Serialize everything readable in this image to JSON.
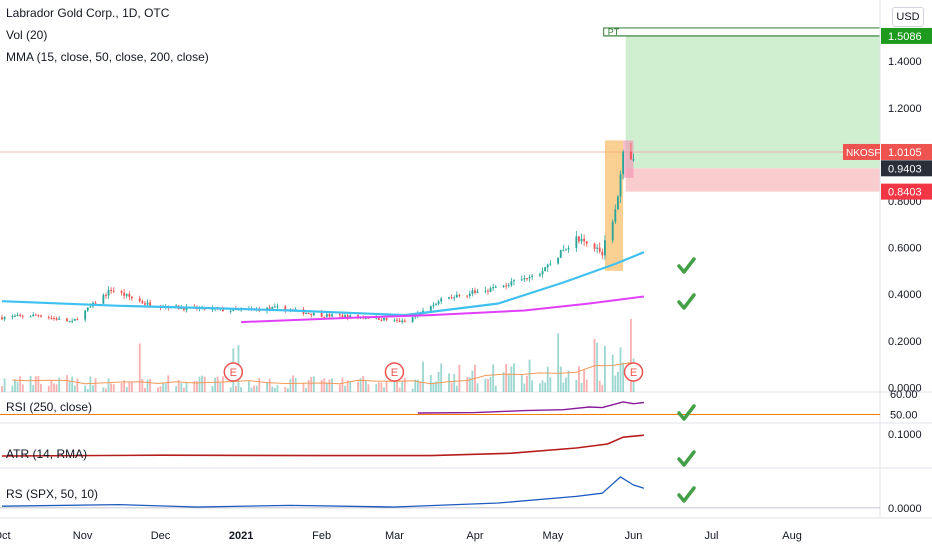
{
  "header": {
    "title": "Labrador Gold Corp., 1D, OTC",
    "vol_label": "Vol (20)",
    "mma_label": "MMA (15, close, 50, close, 200, close)"
  },
  "currency": "USD",
  "price_pane": {
    "y_ticks": [
      "0.0000",
      "0.2000",
      "0.4000",
      "0.6000",
      "0.8000",
      "1.2000",
      "1.4000"
    ],
    "y_tick_values": [
      0,
      0.2,
      0.4,
      0.6,
      0.8,
      1.2,
      1.4
    ],
    "ylim": [
      -0.02,
      1.62
    ],
    "earnings_markers": [
      {
        "label": "E",
        "date": "2020-12-29"
      },
      {
        "label": "E",
        "date": "2021-03-01"
      },
      {
        "label": "E",
        "date": "2021-06-01"
      }
    ]
  },
  "price_labels": {
    "ticker": "NKOSF",
    "last": "1.0105",
    "last_value": 1.0105,
    "entry": "0.9403",
    "entry_value": 0.9403,
    "stop": "0.8403",
    "stop_value": 0.8403,
    "target": "1.5086",
    "target_value": 1.5086,
    "pt_label": "PT"
  },
  "rsi_pane": {
    "label": "RSI (250, close)",
    "ticks": [
      "60.00",
      "50.00"
    ]
  },
  "atr_pane": {
    "label": "ATR (14, RMA)",
    "ticks": [
      "0.1000"
    ]
  },
  "rs_pane": {
    "label": "RS (SPX, 50, 10)",
    "ticks": [
      "0.0000"
    ]
  },
  "x_axis": {
    "ticks": [
      {
        "label": "Oct",
        "date": "2020-10-01"
      },
      {
        "label": "Nov",
        "date": "2020-11-01"
      },
      {
        "label": "Dec",
        "date": "2020-12-01"
      },
      {
        "label": "2021",
        "date": "2021-01-01"
      },
      {
        "label": "Feb",
        "date": "2021-02-01"
      },
      {
        "label": "Mar",
        "date": "2021-03-01"
      },
      {
        "label": "Apr",
        "date": "2021-04-01"
      },
      {
        "label": "May",
        "date": "2021-05-01"
      },
      {
        "label": "Jun",
        "date": "2021-06-01"
      },
      {
        "label": "Jul",
        "date": "2021-07-01"
      },
      {
        "label": "Aug",
        "date": "2021-08-01"
      }
    ]
  },
  "colors": {
    "up": "#26a69a",
    "down": "#ef5350",
    "ma50": "#3fc1ef",
    "ma200": "#e040fb",
    "vol_ma": "#f59a57",
    "rsi": "#8b1a9b",
    "atr": "#b71c1c",
    "rs": "#1e5bbf",
    "check": "#43a047",
    "target_zone": "#c8ecc9",
    "stop_zone": "#f8c7c9",
    "highlight": "#f6b04a"
  },
  "chart_data": {
    "type": "candlestick",
    "x_range": [
      "2020-10-01",
      "2021-08-31"
    ],
    "close_path": [
      {
        "date": "2020-10-01",
        "close": 0.3
      },
      {
        "date": "2020-10-15",
        "close": 0.31
      },
      {
        "date": "2020-10-28",
        "close": 0.28
      },
      {
        "date": "2020-11-12",
        "close": 0.42
      },
      {
        "date": "2020-11-25",
        "close": 0.36
      },
      {
        "date": "2020-12-10",
        "close": 0.34
      },
      {
        "date": "2020-12-30",
        "close": 0.33
      },
      {
        "date": "2021-01-15",
        "close": 0.34
      },
      {
        "date": "2021-02-01",
        "close": 0.31
      },
      {
        "date": "2021-02-20",
        "close": 0.3
      },
      {
        "date": "2021-03-05",
        "close": 0.28
      },
      {
        "date": "2021-03-20",
        "close": 0.38
      },
      {
        "date": "2021-04-10",
        "close": 0.43
      },
      {
        "date": "2021-04-25",
        "close": 0.48
      },
      {
        "date": "2021-05-10",
        "close": 0.64
      },
      {
        "date": "2021-05-20",
        "close": 0.58
      },
      {
        "date": "2021-05-26",
        "close": 0.8
      },
      {
        "date": "2021-05-28",
        "close": 1.02
      },
      {
        "date": "2021-06-01",
        "close": 0.96
      },
      {
        "date": "2021-06-02",
        "close": 1.0105
      }
    ],
    "ma50": [
      {
        "date": "2020-10-01",
        "v": 0.37
      },
      {
        "date": "2020-11-15",
        "v": 0.35
      },
      {
        "date": "2020-12-20",
        "v": 0.34
      },
      {
        "date": "2021-01-20",
        "v": 0.33
      },
      {
        "date": "2021-03-05",
        "v": 0.31
      },
      {
        "date": "2021-04-10",
        "v": 0.36
      },
      {
        "date": "2021-05-05",
        "v": 0.45
      },
      {
        "date": "2021-05-25",
        "v": 0.53
      },
      {
        "date": "2021-06-05",
        "v": 0.58
      }
    ],
    "ma200": [
      {
        "date": "2021-01-01",
        "v": 0.28
      },
      {
        "date": "2021-02-15",
        "v": 0.3
      },
      {
        "date": "2021-03-15",
        "v": 0.31
      },
      {
        "date": "2021-04-20",
        "v": 0.33
      },
      {
        "date": "2021-05-15",
        "v": 0.36
      },
      {
        "date": "2021-06-05",
        "v": 0.39
      }
    ],
    "rsi_ylim": [
      45,
      63
    ],
    "rsi": [
      {
        "date": "2021-03-10",
        "v": 51.0
      },
      {
        "date": "2021-04-01",
        "v": 51.3
      },
      {
        "date": "2021-04-20",
        "v": 52.6
      },
      {
        "date": "2021-05-05",
        "v": 53.2
      },
      {
        "date": "2021-05-15",
        "v": 55.0
      },
      {
        "date": "2021-05-20",
        "v": 54.6
      },
      {
        "date": "2021-05-28",
        "v": 58.4
      },
      {
        "date": "2021-06-01",
        "v": 57.2
      },
      {
        "date": "2021-06-05",
        "v": 58.0
      }
    ],
    "atr_ylim": [
      0.02,
      0.115
    ],
    "atr": [
      {
        "date": "2020-10-01",
        "v": 0.045
      },
      {
        "date": "2020-12-01",
        "v": 0.047
      },
      {
        "date": "2021-02-01",
        "v": 0.046
      },
      {
        "date": "2021-03-15",
        "v": 0.046
      },
      {
        "date": "2021-04-15",
        "v": 0.052
      },
      {
        "date": "2021-05-10",
        "v": 0.065
      },
      {
        "date": "2021-05-22",
        "v": 0.075
      },
      {
        "date": "2021-05-28",
        "v": 0.092
      },
      {
        "date": "2021-06-05",
        "v": 0.097
      }
    ],
    "rs_ylim": [
      -0.5,
      2.2
    ],
    "rs": [
      {
        "date": "2020-10-01",
        "v": 0.1
      },
      {
        "date": "2020-11-15",
        "v": 0.2
      },
      {
        "date": "2020-12-15",
        "v": 0.05
      },
      {
        "date": "2021-01-20",
        "v": 0.15
      },
      {
        "date": "2021-03-01",
        "v": 0.05
      },
      {
        "date": "2021-04-10",
        "v": 0.3
      },
      {
        "date": "2021-05-10",
        "v": 0.7
      },
      {
        "date": "2021-05-20",
        "v": 0.9
      },
      {
        "date": "2021-05-27",
        "v": 1.9
      },
      {
        "date": "2021-06-01",
        "v": 1.4
      },
      {
        "date": "2021-06-05",
        "v": 1.2
      }
    ]
  }
}
